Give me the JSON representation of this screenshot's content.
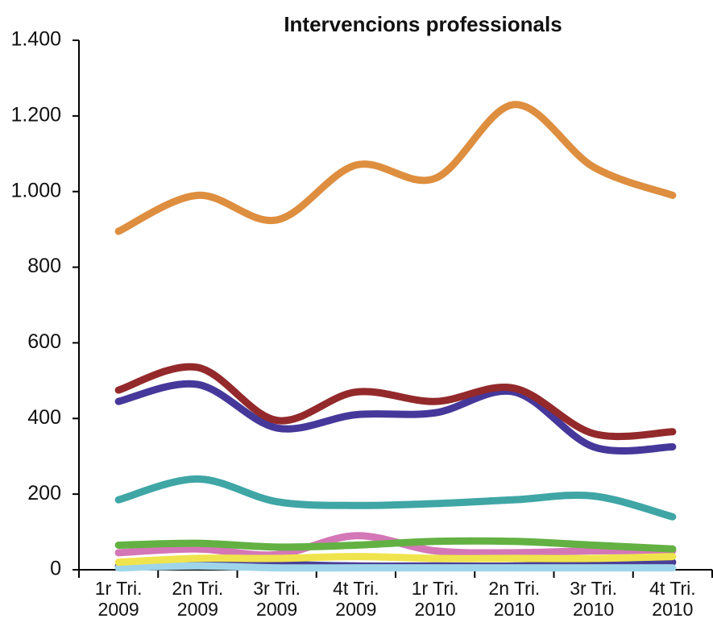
{
  "chart_data": {
    "type": "line",
    "title": "Intervencions professionals",
    "categories": [
      "1r Tri. 2009",
      "2n Tri. 2009",
      "3r Tri. 2009",
      "4t Tri. 2009",
      "1r Tri. 2010",
      "2n Tri. 2010",
      "3r Tri. 2010",
      "4t Tri. 2010"
    ],
    "series": [
      {
        "color": "#de8e3f",
        "values": [
          895,
          990,
          925,
          1070,
          1035,
          1230,
          1065,
          990
        ]
      },
      {
        "color": "#93292b",
        "values": [
          475,
          535,
          395,
          470,
          445,
          480,
          360,
          365
        ]
      },
      {
        "color": "#46389a",
        "values": [
          445,
          490,
          375,
          410,
          415,
          470,
          325,
          325
        ]
      },
      {
        "color": "#3fa6a5",
        "values": [
          185,
          240,
          180,
          170,
          175,
          185,
          195,
          140
        ]
      },
      {
        "color": "#63b143",
        "values": [
          65,
          70,
          60,
          65,
          75,
          75,
          65,
          55
        ]
      },
      {
        "color": "#f0e44e",
        "values": [
          20,
          30,
          30,
          35,
          30,
          30,
          30,
          35
        ]
      },
      {
        "color": "#d477b6",
        "values": [
          45,
          55,
          40,
          90,
          50,
          45,
          50,
          50
        ]
      },
      {
        "color": "#9fd5ea",
        "values": [
          5,
          10,
          5,
          5,
          5,
          5,
          5,
          5
        ]
      },
      {
        "color": "#4a3f96",
        "values": [
          10,
          25,
          15,
          10,
          10,
          10,
          15,
          20
        ]
      }
    ],
    "ylim": [
      0,
      1400
    ],
    "yticks": [
      0,
      200,
      400,
      600,
      800,
      {
        "value": 1000,
        "label": "1.000"
      },
      {
        "value": 1200,
        "label": "1.200"
      },
      {
        "value": 1400,
        "label": "1.400"
      }
    ]
  }
}
